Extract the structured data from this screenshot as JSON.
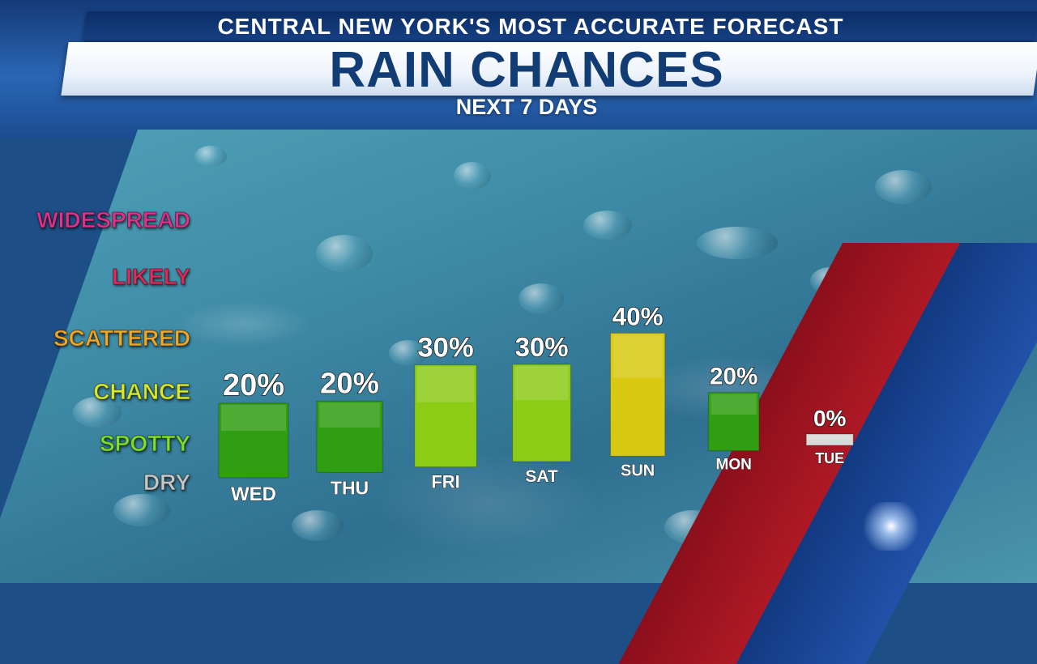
{
  "header": {
    "brand": "CENTRAL NEW YORK'S MOST ACCURATE FORECAST",
    "title": "RAIN CHANCES",
    "subtitle": "NEXT 7 DAYS"
  },
  "levels": [
    {
      "label": "WIDESPREAD",
      "color": "#e0318c"
    },
    {
      "label": "LIKELY",
      "color": "#e02c5c"
    },
    {
      "label": "SCATTERED",
      "color": "#f0a828"
    },
    {
      "label": "CHANCE",
      "color": "#d8ea2c"
    },
    {
      "label": "SPOTTY",
      "color": "#7ee02c"
    },
    {
      "label": "DRY",
      "color": "#c8c8c8"
    }
  ],
  "colors": {
    "header_navy": "#123d74",
    "accent_red": "#d2232e",
    "accent_blue": "#2151a8"
  },
  "chart_data": {
    "type": "bar",
    "title": "RAIN CHANCES",
    "subtitle": "NEXT 7 DAYS",
    "categories": [
      "WED",
      "THU",
      "FRI",
      "SAT",
      "SUN",
      "MON",
      "TUE"
    ],
    "values": [
      20,
      20,
      30,
      30,
      40,
      20,
      0
    ],
    "value_labels": [
      "20%",
      "20%",
      "30%",
      "30%",
      "40%",
      "20%",
      "0%"
    ],
    "bar_colors": [
      "#2f9e12",
      "#2f9e12",
      "#8ccb16",
      "#8ccb16",
      "#d8c812",
      "#2f9e12",
      "#d9d9d9"
    ],
    "grid": false
  }
}
